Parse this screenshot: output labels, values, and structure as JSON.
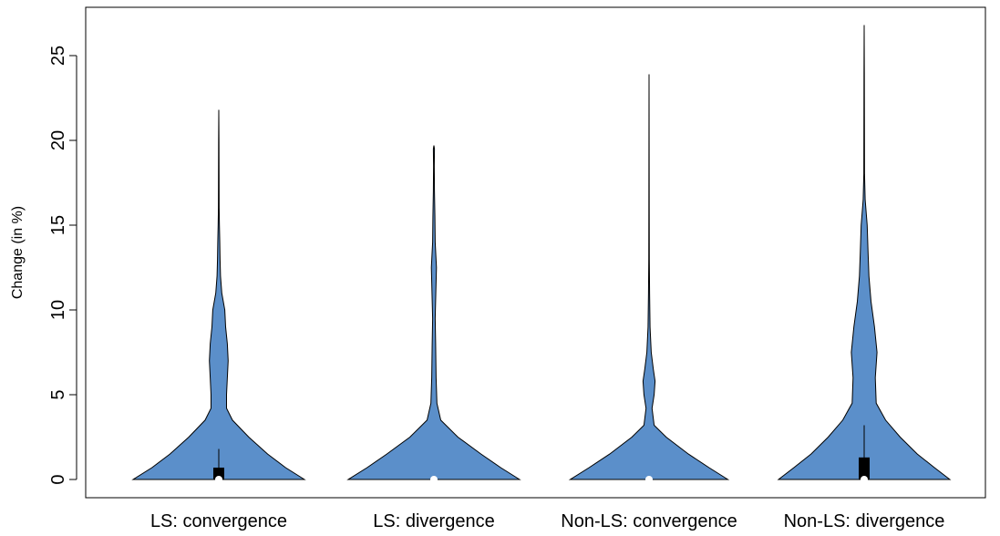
{
  "chart_data": {
    "type": "violin",
    "title": "",
    "xlabel": "",
    "ylabel": "Change (in %)",
    "ylim": [
      -1,
      27.5
    ],
    "yticks": [
      0,
      5,
      10,
      15,
      20,
      25
    ],
    "fill_color": "#5b8fca",
    "categories": [
      "LS: convergence",
      "LS: divergence",
      "Non-LS: convergence",
      "Non-LS: divergence"
    ],
    "violins": [
      {
        "min": 0,
        "max": 21.8,
        "q1": 0,
        "median": 0,
        "q3": 0.7,
        "whisker_high": 1.8,
        "profile": [
          [
            0,
            1.0
          ],
          [
            0.7,
            0.78
          ],
          [
            1.5,
            0.57
          ],
          [
            2.5,
            0.35
          ],
          [
            3.5,
            0.16
          ],
          [
            4.2,
            0.09
          ],
          [
            5,
            0.09
          ],
          [
            6,
            0.1
          ],
          [
            7,
            0.11
          ],
          [
            8,
            0.1
          ],
          [
            9,
            0.08
          ],
          [
            10,
            0.07
          ],
          [
            11,
            0.035
          ],
          [
            12,
            0.02
          ],
          [
            13,
            0.015
          ],
          [
            14,
            0.012
          ],
          [
            15,
            0.007
          ],
          [
            16,
            0.004
          ],
          [
            18,
            0.003
          ],
          [
            20,
            0.002
          ],
          [
            21.8,
            0.0
          ]
        ]
      },
      {
        "min": 0,
        "max": 19.7,
        "q1": 0,
        "median": 0,
        "q3": 0,
        "whisker_high": 0,
        "profile": [
          [
            0,
            1.0
          ],
          [
            0.7,
            0.78
          ],
          [
            1.5,
            0.55
          ],
          [
            2.5,
            0.28
          ],
          [
            3.5,
            0.08
          ],
          [
            4.5,
            0.035
          ],
          [
            6,
            0.025
          ],
          [
            8,
            0.02
          ],
          [
            9.5,
            0.015
          ],
          [
            11,
            0.022
          ],
          [
            12.5,
            0.03
          ],
          [
            14,
            0.015
          ],
          [
            15.5,
            0.012
          ],
          [
            17,
            0.006
          ],
          [
            18.5,
            0.004
          ],
          [
            19.5,
            0.006
          ],
          [
            19.7,
            0.0
          ]
        ]
      },
      {
        "min": 0,
        "max": 23.9,
        "q1": 0,
        "median": 0,
        "q3": 0,
        "whisker_high": 0,
        "profile": [
          [
            0,
            0.92
          ],
          [
            0.7,
            0.7
          ],
          [
            1.5,
            0.46
          ],
          [
            2.5,
            0.2
          ],
          [
            3.2,
            0.06
          ],
          [
            4.2,
            0.035
          ],
          [
            5,
            0.06
          ],
          [
            5.8,
            0.07
          ],
          [
            6.5,
            0.05
          ],
          [
            7.5,
            0.025
          ],
          [
            9,
            0.012
          ],
          [
            11,
            0.006
          ],
          [
            13,
            0.003
          ],
          [
            16,
            0.002
          ],
          [
            20,
            0.0015
          ],
          [
            23.9,
            0.0
          ]
        ]
      },
      {
        "min": 0,
        "max": 26.8,
        "q1": 0,
        "median": 0,
        "q3": 1.3,
        "whisker_high": 3.2,
        "profile": [
          [
            0,
            1.0
          ],
          [
            0.7,
            0.82
          ],
          [
            1.5,
            0.62
          ],
          [
            2.5,
            0.42
          ],
          [
            3.5,
            0.25
          ],
          [
            4.5,
            0.14
          ],
          [
            6,
            0.13
          ],
          [
            7.5,
            0.15
          ],
          [
            9,
            0.12
          ],
          [
            10.5,
            0.08
          ],
          [
            12,
            0.055
          ],
          [
            13.5,
            0.045
          ],
          [
            15,
            0.035
          ],
          [
            16.5,
            0.012
          ],
          [
            18,
            0.004
          ],
          [
            21,
            0.003
          ],
          [
            24,
            0.002
          ],
          [
            26.8,
            0.0
          ]
        ]
      }
    ]
  }
}
